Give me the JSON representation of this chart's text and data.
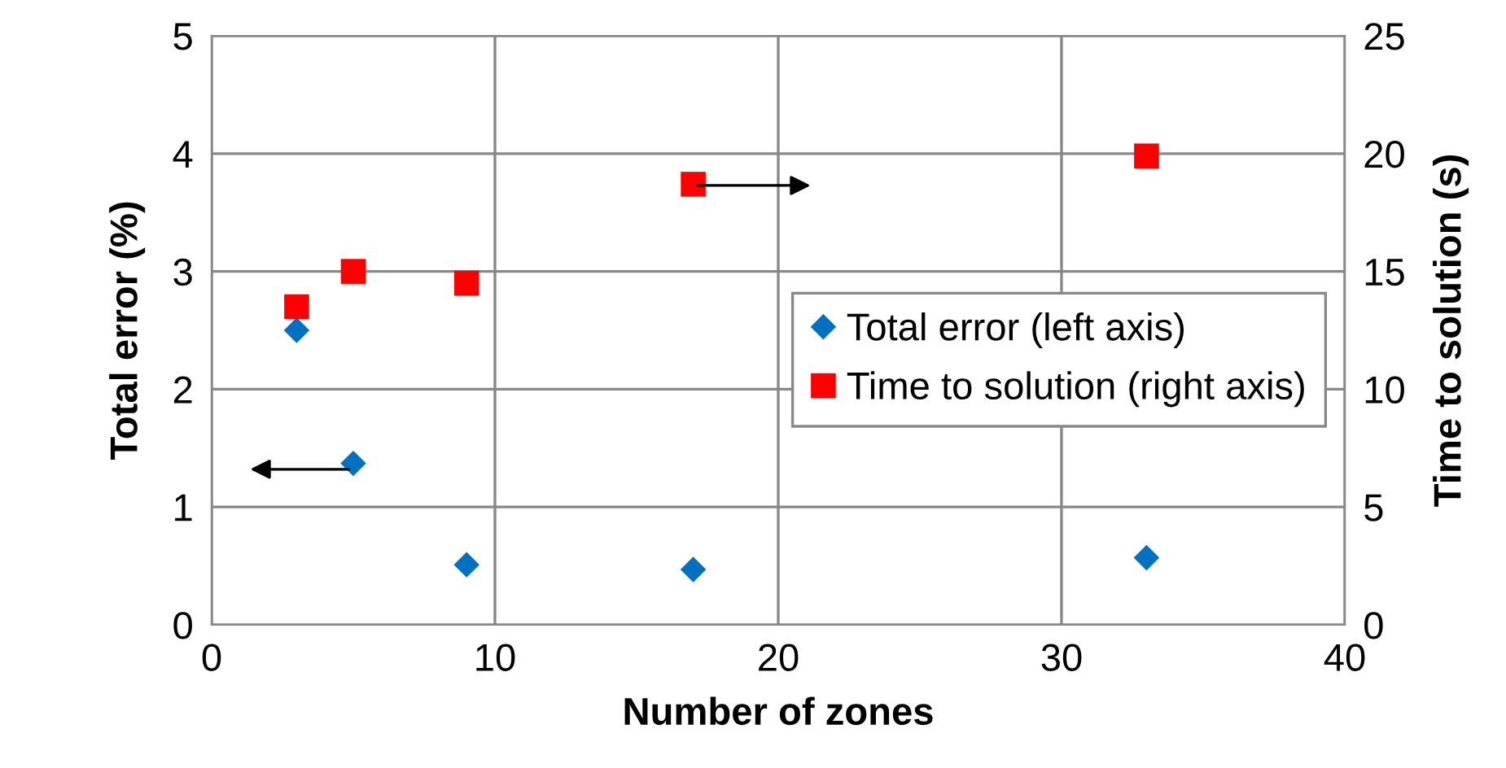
{
  "chart_data": {
    "type": "scatter",
    "xlabel": "Number of zones",
    "ylabel": "Total error (%)",
    "y2label": "Time to solution (s)",
    "x": [
      3,
      5,
      9,
      17,
      33
    ],
    "series": [
      {
        "name": "Total error (left axis)",
        "color": "#0070c0",
        "values": [
          2.5,
          1.37,
          0.51,
          0.47,
          0.57
        ],
        "marker": "diamond",
        "axis": "y"
      },
      {
        "name": "Time to solution (right axis)",
        "color": "#ff0000",
        "values": [
          13.5,
          15.0,
          14.5,
          18.7,
          19.9
        ],
        "marker": "square",
        "axis": "y2"
      }
    ],
    "xlim": [
      0,
      40
    ],
    "xticks": [
      0,
      10,
      20,
      30,
      40
    ],
    "ylim": [
      0,
      5
    ],
    "yticks": [
      0,
      1,
      2,
      3,
      4,
      5
    ],
    "y2lim": [
      0,
      25
    ],
    "y2ticks": [
      0,
      5,
      10,
      15,
      20,
      25
    ],
    "grid": true,
    "legend": "center right"
  }
}
